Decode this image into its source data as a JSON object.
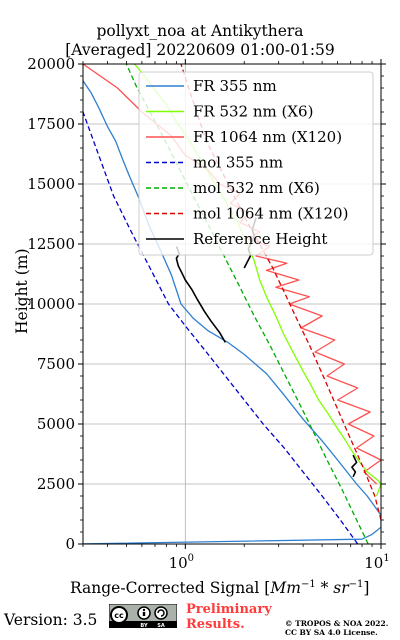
{
  "title_line1": "pollyxt_noa at Antikythera",
  "title_line2": "[Averaged] 20220609 01:00-01:59",
  "version_text": "Version: 3.5",
  "license_badge": {
    "text_left": "BY",
    "text_right": "SA"
  },
  "preliminary_line1": "Preliminary",
  "preliminary_line2": "Results.",
  "copyright_line1": "© TROPOS & NOA 2022.",
  "copyright_line2": "CC BY SA 4.0 License.",
  "colors": {
    "fr355": "#2e7fd0",
    "fr532": "#7fff00",
    "fr1064": "#ff5050",
    "mol355": "#0000cc",
    "mol532": "#00aa00",
    "mol1064": "#dd0000",
    "reference": "#000000",
    "preliminary": "#ff3b3b"
  },
  "chart_data": {
    "type": "line",
    "title": "pollyxt_noa at Antikythera [Averaged] 20220609 01:00-01:59",
    "xlabel": "Range-Corrected Signal [Mm^-1 * sr^-1]",
    "ylabel": "Height (m)",
    "xscale": "log",
    "xlim": [
      0.3,
      10
    ],
    "ylim": [
      0,
      20000
    ],
    "x_ticks": [
      {
        "value": 1,
        "label": "10^0"
      },
      {
        "value": 10,
        "label": "10^1"
      }
    ],
    "y_ticks": [
      0,
      2500,
      5000,
      7500,
      10000,
      12500,
      15000,
      17500,
      20000
    ],
    "y_tick_labels": [
      "0",
      "2500",
      "5000",
      "7500",
      "10000",
      "12500",
      "15000",
      "17500",
      "20000"
    ],
    "grid": true,
    "legend_position": "top-right",
    "series": [
      {
        "name": "FR 355 nm",
        "style": "solid",
        "color": "#2e7fd0",
        "x": [
          0.28,
          8.0,
          9.0,
          10.0,
          10.0,
          8.5,
          7.5,
          6.0,
          5.0,
          4.0,
          3.2,
          2.6,
          2.0,
          1.65,
          1.3,
          1.1,
          0.95,
          0.85,
          0.75,
          0.65,
          0.58,
          0.52,
          0.48,
          0.44,
          0.4,
          0.36,
          0.33,
          0.3,
          0.28
        ],
        "y": [
          0,
          200,
          400,
          700,
          1200,
          2000,
          2500,
          3500,
          4300,
          5200,
          6200,
          7100,
          7900,
          8400,
          8900,
          9400,
          10000,
          11200,
          12200,
          13300,
          14400,
          15300,
          16000,
          16800,
          17400,
          18200,
          18800,
          19300,
          19800
        ]
      },
      {
        "name": "FR 532 nm (X6)",
        "style": "solid",
        "color": "#7fff00",
        "x": [
          9.5,
          10.0,
          9.5,
          8.5,
          7.8,
          7.2,
          6.6,
          6.0,
          5.4,
          4.8,
          4.4,
          4.0,
          3.6,
          3.2,
          2.9,
          2.6,
          2.4,
          2.25,
          2.05,
          1.85,
          1.6,
          1.4,
          1.2,
          1.05,
          0.9,
          0.8,
          0.7,
          0.62,
          0.55
        ],
        "y": [
          2000,
          2500,
          2700,
          3000,
          3400,
          3800,
          4300,
          4800,
          5400,
          6000,
          6600,
          7200,
          7900,
          8700,
          9500,
          10300,
          11000,
          11800,
          12600,
          13400,
          14300,
          15100,
          16000,
          16800,
          17600,
          18300,
          18900,
          19500,
          20000
        ]
      },
      {
        "name": "FR 1064 nm (X120)",
        "style": "solid",
        "color": "#ff5050",
        "x": [
          9.5,
          8.2,
          10.0,
          7.5,
          9.2,
          6.8,
          8.8,
          6.0,
          7.6,
          5.3,
          6.5,
          4.6,
          5.8,
          3.9,
          5.0,
          3.4,
          4.3,
          2.9,
          3.8,
          2.6,
          3.3,
          2.3,
          2.7,
          2.1,
          2.4,
          1.9,
          2.1,
          1.7,
          1.9,
          1.5,
          1.3,
          1.0,
          0.85,
          0.6,
          0.45,
          0.3
        ],
        "y": [
          2500,
          3000,
          3500,
          4000,
          4500,
          5000,
          5500,
          6000,
          6500,
          7000,
          7500,
          8000,
          8500,
          9000,
          9500,
          10000,
          10300,
          10700,
          11000,
          11400,
          11700,
          12000,
          12400,
          12700,
          13000,
          13400,
          13800,
          14200,
          14600,
          15000,
          15600,
          16200,
          17000,
          18000,
          19000,
          20000
        ]
      },
      {
        "name": "mol 355 nm",
        "style": "dashed",
        "color": "#0000cc",
        "x": [
          7.6,
          6.2,
          5.0,
          4.0,
          3.2,
          2.5,
          2.0,
          1.6,
          1.28,
          1.02,
          0.82,
          0.66,
          0.53,
          0.43,
          0.35,
          0.3
        ],
        "y": [
          0,
          1000,
          2000,
          3000,
          4000,
          5000,
          6000,
          7000,
          8000,
          9000,
          10000,
          11500,
          13000,
          14500,
          16500,
          18000
        ]
      },
      {
        "name": "mol 532 nm (X6)",
        "style": "dashed",
        "color": "#00aa00",
        "x": [
          8.6,
          7.5,
          6.3,
          5.3,
          4.5,
          3.8,
          3.2,
          2.7,
          2.25,
          1.9,
          1.6,
          1.35,
          1.13,
          0.95,
          0.8,
          0.67,
          0.56,
          0.5
        ],
        "y": [
          0,
          1000,
          2300,
          3500,
          4700,
          5900,
          7100,
          8300,
          9500,
          10700,
          11900,
          13100,
          14300,
          15500,
          16700,
          17900,
          19100,
          20000
        ]
      },
      {
        "name": "mol 1064 nm (X120)",
        "style": "dashed",
        "color": "#dd0000",
        "x": [
          10.0,
          9.3,
          8.0,
          6.8,
          5.8,
          5.0,
          4.3,
          3.7,
          3.2,
          2.8,
          2.4,
          2.05,
          1.75,
          1.5,
          1.28,
          1.1,
          0.95
        ],
        "y": [
          1000,
          2000,
          3300,
          4600,
          5900,
          7100,
          8300,
          9400,
          10500,
          11500,
          12500,
          13500,
          14600,
          15700,
          16800,
          18400,
          20000
        ]
      },
      {
        "name": "Reference Height",
        "style": "solid",
        "color": "#000000",
        "segments": [
          {
            "x": [
              1.6,
              1.5,
              1.35,
              1.25,
              1.15,
              1.08,
              1.0,
              0.96,
              0.92,
              0.9,
              0.93,
              0.9
            ],
            "y": [
              8400,
              8800,
              9300,
              9700,
              10200,
              10600,
              11000,
              11300,
              11600,
              11900,
              12100,
              12400
            ]
          },
          {
            "x": [
              2.0,
              2.15,
              2.1,
              2.25,
              2.2,
              2.3
            ],
            "y": [
              11500,
              12000,
              12300,
              12800,
              13100,
              13600
            ]
          },
          {
            "x": [
              7.2,
              7.4,
              7.1,
              7.5,
              7.2
            ],
            "y": [
              2800,
              3000,
              3200,
              3400,
              3700
            ]
          }
        ]
      }
    ]
  }
}
